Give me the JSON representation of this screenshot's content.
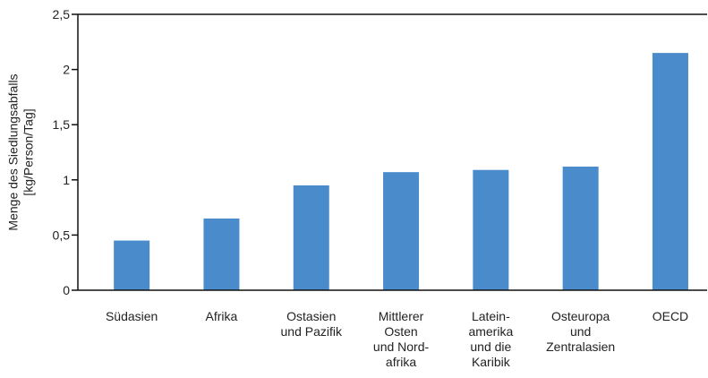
{
  "chart_data": {
    "type": "bar",
    "y_label": "Menge des Siedlungsabfalls\n[kg/Person/Tag]",
    "categories": [
      "Südasien",
      "Afrika",
      "Ostasien\nund Pazifik",
      "Mittlerer\nOsten\nund Nord-\nafrika",
      "Latein-\namerika\nund die\nKaribik",
      "Osteuropa\nund\nZentralasien",
      "OECD"
    ],
    "values": [
      0.45,
      0.65,
      0.95,
      1.07,
      1.09,
      1.12,
      2.15
    ],
    "color": "#4a8bcb",
    "ylim": [
      0,
      2.5
    ],
    "yticks": [
      0,
      {
        "value": 0.5,
        "label": "0,5"
      },
      1,
      {
        "value": 1.5,
        "label": "1,5"
      },
      2,
      {
        "value": 2.5,
        "label": "2,5"
      }
    ],
    "grid": false
  }
}
